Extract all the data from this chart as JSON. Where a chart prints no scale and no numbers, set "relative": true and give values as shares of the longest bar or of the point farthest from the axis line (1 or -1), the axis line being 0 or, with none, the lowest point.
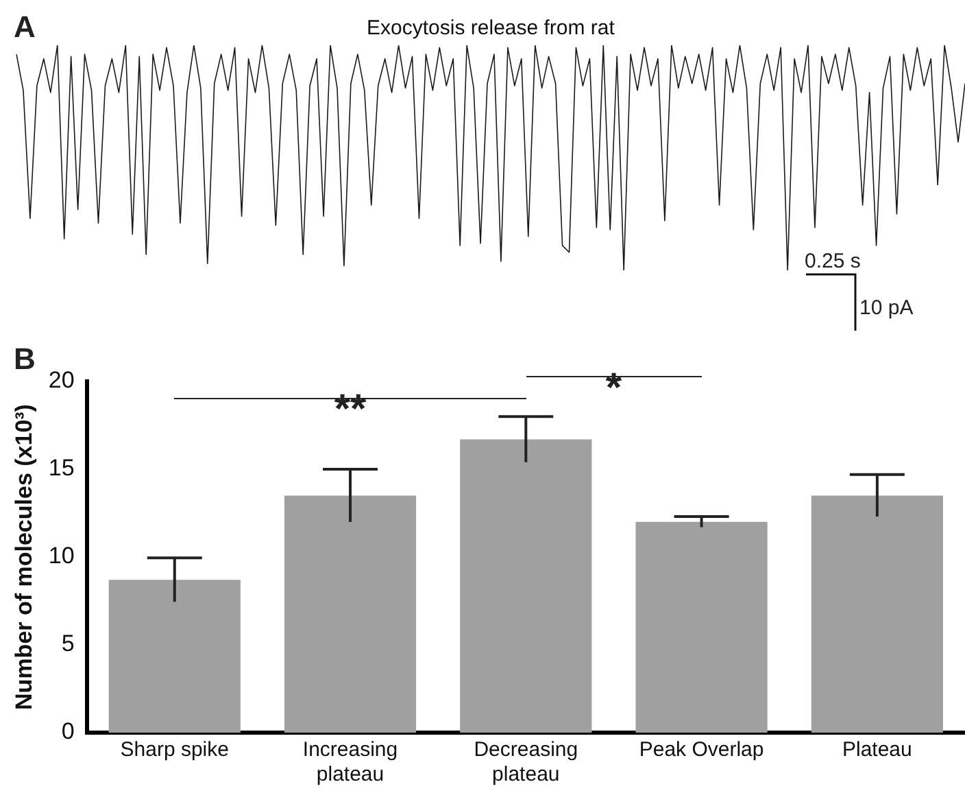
{
  "chart_data": [
    {
      "type": "line",
      "title": "Exocytosis release from rat",
      "relative": true,
      "annotations": [
        "A",
        "0.25 s",
        "10 pA"
      ],
      "grid": false,
      "legend": false,
      "marker": "none",
      "line_style": "solid",
      "categories": [
        null,
        null,
        null,
        null,
        null,
        null,
        null,
        null,
        null,
        null,
        null,
        null,
        null,
        null,
        null,
        null,
        null,
        null,
        null,
        null,
        null,
        null,
        null,
        null,
        null,
        null,
        null,
        null,
        null,
        null,
        null,
        null,
        null,
        null,
        null,
        null,
        null,
        null,
        null,
        null,
        null,
        null,
        null,
        null,
        null,
        null,
        null,
        null,
        null,
        null,
        null,
        null,
        null,
        null,
        null,
        null,
        null,
        null,
        null,
        null,
        null,
        null,
        null,
        null,
        null,
        null,
        null,
        null,
        null,
        null,
        null,
        null,
        null,
        null,
        null,
        null,
        null,
        null,
        null,
        null,
        null,
        null,
        null,
        null,
        null,
        null,
        null,
        null,
        null,
        null,
        null,
        null,
        null,
        null,
        null,
        null,
        null,
        null,
        null,
        null,
        null,
        null,
        null,
        null,
        null,
        null,
        null,
        null,
        null,
        null,
        null,
        null,
        null,
        null,
        null,
        null,
        null,
        null,
        null,
        null,
        null,
        null,
        null,
        null,
        null,
        null,
        null,
        null,
        null,
        null,
        null,
        null,
        null,
        null,
        null,
        null,
        null,
        null,
        null,
        null
      ],
      "series": [
        {
          "color": "#1a1a1a",
          "values": [
            0.96,
            0.8,
            0.23,
            0.82,
            0.94,
            0.79,
            1,
            0.14,
            0.95,
            0.27,
            0.96,
            0.8,
            0.21,
            0.82,
            0.94,
            0.79,
            1,
            0.16,
            0.95,
            0.07,
            0.96,
            0.8,
            0.99,
            0.82,
            0.21,
            0.79,
            1,
            0.81,
            0.03,
            0.83,
            0.96,
            0.8,
            0.99,
            0.24,
            0.94,
            0.79,
            1,
            0.81,
            0.2,
            0.83,
            0.96,
            0.8,
            0.07,
            0.82,
            0.94,
            0.24,
            1,
            0.81,
            0.02,
            0.83,
            0.96,
            0.8,
            0.29,
            0.82,
            0.94,
            0.79,
            1,
            0.81,
            0.95,
            0.23,
            0.96,
            0.8,
            0.99,
            0.82,
            0.94,
            0.11,
            1,
            0.81,
            0.12,
            0.83,
            0.96,
            0.04,
            0.99,
            0.82,
            0.94,
            0.15,
            1,
            0.81,
            0.95,
            0.83,
            0.11,
            0.08,
            0.99,
            0.82,
            0.94,
            0.19,
            1,
            0.18,
            0.95,
            0,
            0.96,
            0.8,
            0.99,
            0.82,
            0.94,
            0.22,
            1,
            0.81,
            0.95,
            0.83,
            0.96,
            0.8,
            0.99,
            0.29,
            0.94,
            0.79,
            1,
            0.81,
            0.18,
            0.83,
            0.96,
            0.8,
            0.99,
            0,
            0.94,
            0.79,
            1,
            0.19,
            0.95,
            0.83,
            0.96,
            0.8,
            0.99,
            0.82,
            0.29,
            0.79,
            0.11,
            0.81,
            0.95,
            0.25,
            0.96,
            0.8,
            0.99,
            0.82,
            0.94,
            0.38,
            1,
            0.81,
            0.57,
            0.83
          ]
        }
      ]
    },
    {
      "type": "bar",
      "ylabel": "Number of molecules (x10³)",
      "annotations": [
        "B",
        "**",
        "*"
      ],
      "grid": false,
      "legend": false,
      "categories": [
        "Sharp spike",
        "Increasing plateau",
        "Decreasing plateau",
        "Peak Overlap",
        "Plateau"
      ],
      "values": [
        8.7,
        13.5,
        16.7,
        12.0,
        13.5
      ],
      "color": "#a0a0a0",
      "errors": [
        1.25,
        1.5,
        1.3,
        0.3,
        1.2
      ],
      "ylim": [
        0,
        20
      ],
      "yticks": [
        0,
        5,
        10,
        15,
        20
      ]
    }
  ]
}
